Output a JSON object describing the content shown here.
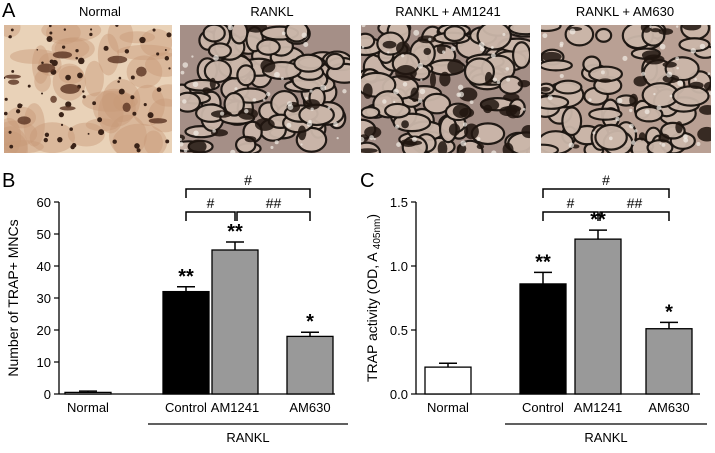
{
  "panel_a": {
    "letter": "A",
    "images": [
      {
        "title": "Normal",
        "style": "sparse-brown-cells"
      },
      {
        "title": "RANKL",
        "style": "dense-osteoclasts"
      },
      {
        "title": "RANKL + AM1241",
        "style": "dense-osteoclasts-dark"
      },
      {
        "title": "RANKL + AM630",
        "style": "moderate-osteoclasts"
      }
    ]
  },
  "chart_data": [
    {
      "panel": "B",
      "type": "bar",
      "ylabel": "Number of TRAP+ MNCs",
      "xlabel": "",
      "ylim": [
        0,
        60
      ],
      "yticks": [
        0,
        10,
        20,
        30,
        40,
        50,
        60
      ],
      "categories": [
        "Normal",
        "Control",
        "AM1241",
        "AM630"
      ],
      "values": [
        0.5,
        32,
        45,
        18
      ],
      "errors": [
        0.4,
        1.5,
        2.5,
        1.3
      ],
      "bar_colors": [
        "#ffffff",
        "#000000",
        "#999999",
        "#999999"
      ],
      "significance": [
        "",
        "**",
        "**",
        "*"
      ],
      "group_label": "RANKL",
      "group_categories": [
        1,
        2,
        3
      ],
      "comparisons": [
        {
          "from": 1,
          "to": 2,
          "label": "#"
        },
        {
          "from": 2,
          "to": 3,
          "label": "##"
        },
        {
          "from": 1,
          "to": 3,
          "label": "#"
        }
      ]
    },
    {
      "panel": "C",
      "type": "bar",
      "ylabel_main": "TRAP activity (OD, A",
      "ylabel_sub": "405nm",
      "ylabel_end": ")",
      "xlabel": "",
      "ylim": [
        0,
        1.5
      ],
      "yticks": [
        "0.0",
        "0.5",
        "1.0",
        "1.5"
      ],
      "categories": [
        "Normal",
        "Control",
        "AM1241",
        "AM630"
      ],
      "values": [
        0.21,
        0.86,
        1.21,
        0.51
      ],
      "errors": [
        0.03,
        0.09,
        0.07,
        0.05
      ],
      "bar_colors": [
        "#ffffff",
        "#000000",
        "#999999",
        "#999999"
      ],
      "significance": [
        "",
        "**",
        "**",
        "*"
      ],
      "group_label": "RANKL",
      "group_categories": [
        1,
        2,
        3
      ],
      "comparisons": [
        {
          "from": 1,
          "to": 2,
          "label": "#"
        },
        {
          "from": 2,
          "to": 3,
          "label": "##"
        },
        {
          "from": 1,
          "to": 3,
          "label": "#"
        }
      ]
    }
  ]
}
